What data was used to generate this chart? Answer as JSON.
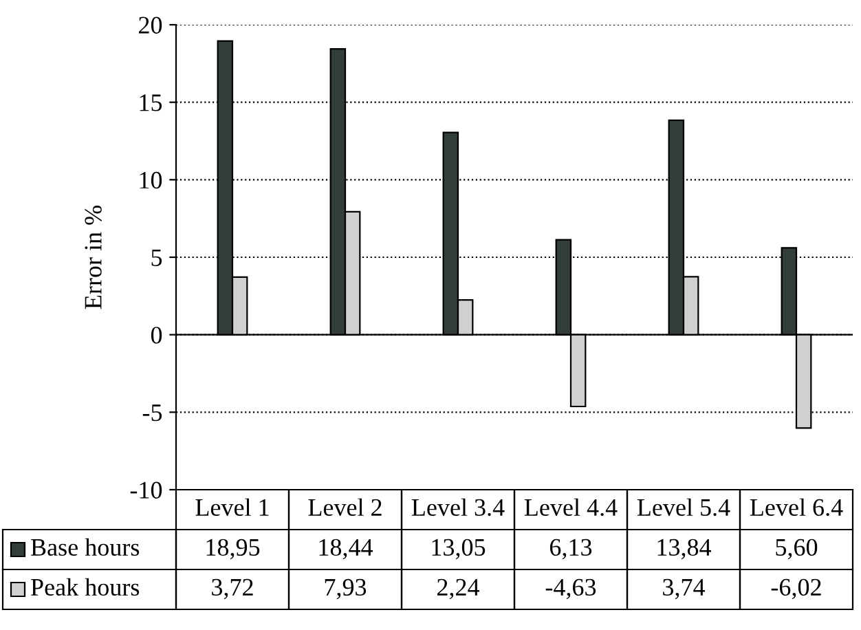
{
  "chart_data": {
    "type": "bar",
    "ylabel": "Error in %",
    "categories": [
      "Level 1",
      "Level 2",
      "Level 3.4",
      "Level 4.4",
      "Level 5.4",
      "Level 6.4"
    ],
    "series": [
      {
        "name": "Base hours",
        "color": "#333d3b",
        "values": [
          18.95,
          18.44,
          13.05,
          6.13,
          13.84,
          5.6
        ],
        "value_labels": [
          "18,95",
          "18,44",
          "13,05",
          "6,13",
          "13,84",
          "5,60"
        ]
      },
      {
        "name": "Peak hours",
        "color": "#d0d0d0",
        "values": [
          3.72,
          7.93,
          2.24,
          -4.63,
          3.74,
          -6.02
        ],
        "value_labels": [
          "3,72",
          "7,93",
          "2,24",
          "-4,63",
          "3,74",
          "-6,02"
        ]
      }
    ],
    "ylim": [
      -10,
      20
    ],
    "yticks": [
      -10,
      -5,
      0,
      5,
      10,
      15,
      20
    ],
    "grid": "y",
    "legend": "bottom"
  }
}
